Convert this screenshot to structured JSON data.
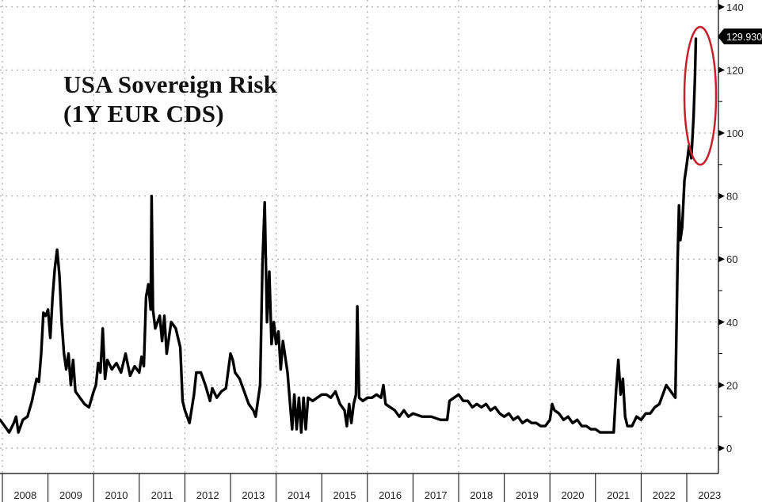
{
  "chart_data": {
    "type": "line",
    "title": "USA Sovereign Risk",
    "subtitle": "(1Y EUR CDS)",
    "xlabel": "",
    "ylabel": "",
    "ylim": [
      0,
      140
    ],
    "y_ticks": [
      0,
      20,
      40,
      60,
      80,
      100,
      120,
      140
    ],
    "y_axis_position": "right",
    "grid": true,
    "legend": null,
    "x_tick_labels": [
      "2008",
      "2009",
      "2010",
      "2011",
      "2012",
      "2013",
      "2014",
      "2015",
      "2016",
      "2017",
      "2018",
      "2019",
      "2020",
      "2021",
      "2022",
      "2023"
    ],
    "last_value_label": "129.930",
    "annotation": "red ellipse highlighting the 2023 spike",
    "series": [
      {
        "name": "USA 1Y EUR CDS",
        "color": "#000000",
        "points": [
          [
            2007.95,
            9
          ],
          [
            2008.05,
            7
          ],
          [
            2008.15,
            5
          ],
          [
            2008.25,
            8
          ],
          [
            2008.3,
            10
          ],
          [
            2008.35,
            5
          ],
          [
            2008.45,
            9
          ],
          [
            2008.55,
            10
          ],
          [
            2008.65,
            15
          ],
          [
            2008.75,
            22
          ],
          [
            2008.8,
            21
          ],
          [
            2008.85,
            30
          ],
          [
            2008.9,
            43
          ],
          [
            2008.95,
            42
          ],
          [
            2009.0,
            44
          ],
          [
            2009.05,
            35
          ],
          [
            2009.1,
            48
          ],
          [
            2009.15,
            57
          ],
          [
            2009.2,
            63
          ],
          [
            2009.25,
            55
          ],
          [
            2009.3,
            40
          ],
          [
            2009.35,
            30
          ],
          [
            2009.4,
            25
          ],
          [
            2009.45,
            30
          ],
          [
            2009.5,
            20
          ],
          [
            2009.55,
            28
          ],
          [
            2009.6,
            18
          ],
          [
            2009.7,
            16
          ],
          [
            2009.8,
            14
          ],
          [
            2009.9,
            13
          ],
          [
            2010.0,
            18
          ],
          [
            2010.05,
            20
          ],
          [
            2010.1,
            27
          ],
          [
            2010.15,
            24
          ],
          [
            2010.2,
            38
          ],
          [
            2010.25,
            22
          ],
          [
            2010.3,
            28
          ],
          [
            2010.4,
            25
          ],
          [
            2010.5,
            27
          ],
          [
            2010.6,
            24
          ],
          [
            2010.7,
            30
          ],
          [
            2010.8,
            23
          ],
          [
            2010.9,
            26
          ],
          [
            2011.0,
            24
          ],
          [
            2011.05,
            29
          ],
          [
            2011.1,
            26
          ],
          [
            2011.15,
            48
          ],
          [
            2011.2,
            52
          ],
          [
            2011.25,
            44
          ],
          [
            2011.27,
            80
          ],
          [
            2011.3,
            44
          ],
          [
            2011.35,
            38
          ],
          [
            2011.45,
            42
          ],
          [
            2011.5,
            34
          ],
          [
            2011.55,
            42
          ],
          [
            2011.6,
            30
          ],
          [
            2011.7,
            40
          ],
          [
            2011.8,
            38
          ],
          [
            2011.9,
            32
          ],
          [
            2011.95,
            15
          ],
          [
            2012.0,
            12
          ],
          [
            2012.1,
            8
          ],
          [
            2012.2,
            17
          ],
          [
            2012.25,
            24
          ],
          [
            2012.35,
            24
          ],
          [
            2012.45,
            20
          ],
          [
            2012.55,
            15
          ],
          [
            2012.6,
            19
          ],
          [
            2012.7,
            16
          ],
          [
            2012.8,
            18
          ],
          [
            2012.9,
            19
          ],
          [
            2013.0,
            30
          ],
          [
            2013.05,
            28
          ],
          [
            2013.1,
            24
          ],
          [
            2013.2,
            22
          ],
          [
            2013.3,
            18
          ],
          [
            2013.4,
            14
          ],
          [
            2013.5,
            12
          ],
          [
            2013.55,
            10
          ],
          [
            2013.65,
            20
          ],
          [
            2013.7,
            58
          ],
          [
            2013.75,
            78
          ],
          [
            2013.8,
            40
          ],
          [
            2013.85,
            56
          ],
          [
            2013.9,
            33
          ],
          [
            2013.95,
            40
          ],
          [
            2014.0,
            33
          ],
          [
            2014.05,
            37
          ],
          [
            2014.1,
            25
          ],
          [
            2014.15,
            34
          ],
          [
            2014.25,
            24
          ],
          [
            2014.3,
            15
          ],
          [
            2014.35,
            6
          ],
          [
            2014.4,
            17
          ],
          [
            2014.45,
            6
          ],
          [
            2014.5,
            16
          ],
          [
            2014.55,
            5
          ],
          [
            2014.6,
            16
          ],
          [
            2014.65,
            6
          ],
          [
            2014.7,
            16
          ],
          [
            2014.8,
            15
          ],
          [
            2014.9,
            16
          ],
          [
            2015.0,
            17
          ],
          [
            2015.1,
            17
          ],
          [
            2015.2,
            16
          ],
          [
            2015.3,
            18
          ],
          [
            2015.4,
            14
          ],
          [
            2015.5,
            12
          ],
          [
            2015.55,
            7
          ],
          [
            2015.6,
            14
          ],
          [
            2015.65,
            8
          ],
          [
            2015.7,
            14
          ],
          [
            2015.75,
            17
          ],
          [
            2015.78,
            45
          ],
          [
            2015.82,
            16
          ],
          [
            2015.9,
            15
          ],
          [
            2016.0,
            16
          ],
          [
            2016.1,
            16
          ],
          [
            2016.2,
            17
          ],
          [
            2016.3,
            16
          ],
          [
            2016.35,
            20
          ],
          [
            2016.4,
            14
          ],
          [
            2016.5,
            13
          ],
          [
            2016.6,
            12
          ],
          [
            2016.7,
            10
          ],
          [
            2016.8,
            12
          ],
          [
            2016.9,
            10
          ],
          [
            2017.0,
            11
          ],
          [
            2017.2,
            10
          ],
          [
            2017.4,
            10
          ],
          [
            2017.6,
            9
          ],
          [
            2017.75,
            9
          ],
          [
            2017.8,
            15
          ],
          [
            2017.9,
            16
          ],
          [
            2018.0,
            17
          ],
          [
            2018.1,
            15
          ],
          [
            2018.2,
            15
          ],
          [
            2018.3,
            13
          ],
          [
            2018.4,
            14
          ],
          [
            2018.5,
            13
          ],
          [
            2018.6,
            14
          ],
          [
            2018.7,
            12
          ],
          [
            2018.8,
            13
          ],
          [
            2018.9,
            11
          ],
          [
            2019.0,
            10
          ],
          [
            2019.1,
            11
          ],
          [
            2019.2,
            9
          ],
          [
            2019.3,
            10
          ],
          [
            2019.4,
            8
          ],
          [
            2019.5,
            9
          ],
          [
            2019.6,
            8
          ],
          [
            2019.7,
            8
          ],
          [
            2019.8,
            7
          ],
          [
            2019.9,
            7
          ],
          [
            2020.0,
            9
          ],
          [
            2020.05,
            14
          ],
          [
            2020.1,
            12
          ],
          [
            2020.2,
            11
          ],
          [
            2020.3,
            9
          ],
          [
            2020.4,
            10
          ],
          [
            2020.5,
            8
          ],
          [
            2020.6,
            9
          ],
          [
            2020.7,
            7
          ],
          [
            2020.8,
            7
          ],
          [
            2020.9,
            6
          ],
          [
            2021.0,
            6
          ],
          [
            2021.1,
            5
          ],
          [
            2021.2,
            5
          ],
          [
            2021.3,
            5
          ],
          [
            2021.4,
            5
          ],
          [
            2021.45,
            18
          ],
          [
            2021.5,
            28
          ],
          [
            2021.55,
            17
          ],
          [
            2021.6,
            22
          ],
          [
            2021.65,
            10
          ],
          [
            2021.7,
            7
          ],
          [
            2021.8,
            7
          ],
          [
            2021.9,
            10
          ],
          [
            2022.0,
            9
          ],
          [
            2022.1,
            11
          ],
          [
            2022.2,
            11
          ],
          [
            2022.3,
            13
          ],
          [
            2022.4,
            14
          ],
          [
            2022.5,
            18
          ],
          [
            2022.55,
            20
          ],
          [
            2022.6,
            19
          ],
          [
            2022.7,
            17
          ],
          [
            2022.75,
            16
          ],
          [
            2022.8,
            60
          ],
          [
            2022.83,
            77
          ],
          [
            2022.86,
            66
          ],
          [
            2022.9,
            70
          ],
          [
            2022.95,
            85
          ],
          [
            2023.0,
            90
          ],
          [
            2023.05,
            96
          ],
          [
            2023.1,
            92
          ],
          [
            2023.15,
            105
          ],
          [
            2023.18,
            118
          ],
          [
            2023.2,
            129.93
          ]
        ]
      }
    ]
  },
  "callout": {
    "value": "129.930",
    "background": "#000000",
    "text_color": "#ffffff"
  },
  "colors": {
    "line": "#000000",
    "grid": "#9a9a9a",
    "highlight_ellipse": "#c8202a",
    "background": "#ffffff"
  }
}
